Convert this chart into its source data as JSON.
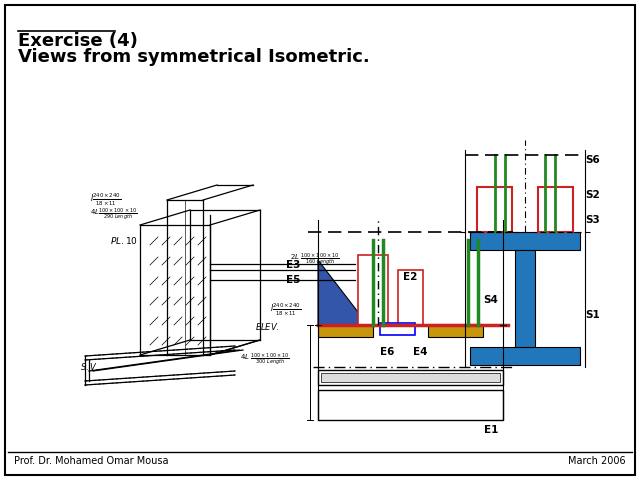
{
  "title": "Exercise (4)",
  "subtitle": "Views from symmetrical Isometric.",
  "footer_left": "Prof. Dr. Mohamed Omar Mousa",
  "footer_right": "March 2006",
  "bg_color": "#ffffff",
  "border_color": "#000000",
  "colors": {
    "blue_fill": "#3355aa",
    "gold_fill": "#c8960c",
    "red_outline": "#cc2222",
    "green_line": "#228822",
    "dark_brown": "#663300",
    "steel_blue": "#2277bb",
    "black": "#000000",
    "white": "#ffffff",
    "gray": "#aaaaaa"
  }
}
